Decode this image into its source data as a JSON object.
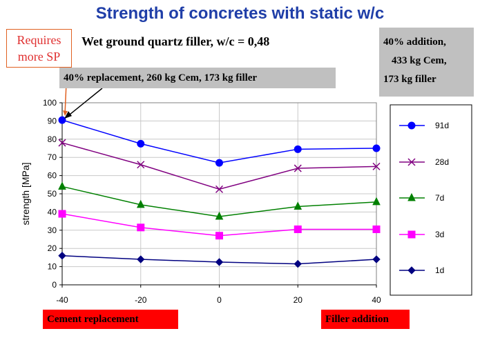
{
  "title": "Strength of concretes with static w/c",
  "subtitle": "Wet ground quartz filler, w/c = 0,48",
  "callout": {
    "line1": "Requires",
    "line2": "more SP"
  },
  "replacement_box": "40% replacement, 260 kg Cem, 173 kg filler",
  "addition_box": {
    "line1": "40% addition,",
    "line2": "433 kg Cem,",
    "line3": "173 kg filler"
  },
  "bottom_labels": {
    "left": "Cement replacement",
    "right": "Filler addition"
  },
  "colors": {
    "title": "#1f3ea8",
    "callout_text": "#e03030",
    "gray_box": "#c0c0c0",
    "red_box": "#ff0000"
  },
  "chart_data": {
    "type": "line",
    "title": "",
    "xlabel": "",
    "ylabel": "strength [MPa]",
    "x": [
      -40,
      -20,
      0,
      20,
      40
    ],
    "xlim": [
      -40,
      40
    ],
    "ylim": [
      0,
      100
    ],
    "x_ticks": [
      -40,
      -20,
      0,
      20,
      40
    ],
    "y_ticks": [
      0,
      10,
      20,
      30,
      40,
      50,
      60,
      70,
      80,
      90,
      100
    ],
    "grid": true,
    "legend_position": "right",
    "series": [
      {
        "name": "91d",
        "values": [
          90.5,
          77.5,
          67,
          74.5,
          75
        ],
        "color": "#0000ff",
        "marker": "circle"
      },
      {
        "name": "28d",
        "values": [
          78,
          66,
          52.5,
          64,
          65
        ],
        "color": "#800080",
        "marker": "x"
      },
      {
        "name": "7d",
        "values": [
          54,
          44,
          37.5,
          43,
          45.5
        ],
        "color": "#008000",
        "marker": "triangle"
      },
      {
        "name": "3d",
        "values": [
          39,
          31.5,
          27,
          30.5,
          30.5
        ],
        "color": "#ff00ff",
        "marker": "square"
      },
      {
        "name": "1d",
        "values": [
          16,
          14,
          12.5,
          11.5,
          14
        ],
        "color": "#000080",
        "marker": "diamond"
      }
    ]
  }
}
